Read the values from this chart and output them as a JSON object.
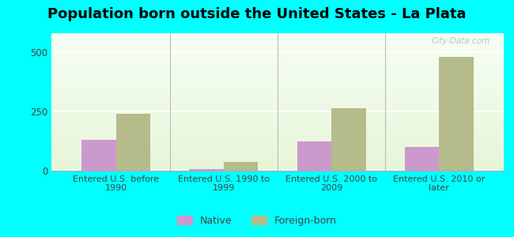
{
  "title": "Population born outside the United States - La Plata",
  "categories": [
    "Entered U.S. before\n1990",
    "Entered U.S. 1990 to\n1999",
    "Entered U.S. 2000 to\n2009",
    "Entered U.S. 2010 or\nlater"
  ],
  "native_values": [
    130,
    8,
    125,
    100
  ],
  "foreign_values": [
    240,
    38,
    265,
    480
  ],
  "native_color": "#cc99cc",
  "foreign_color": "#b5bb8a",
  "outer_background": "#00ffff",
  "ylim": [
    0,
    580
  ],
  "yticks": [
    0,
    250,
    500
  ],
  "watermark": "City-Data.com",
  "legend_native": "Native",
  "legend_foreign": "Foreign-born",
  "title_fontsize": 13,
  "bar_width": 0.32
}
